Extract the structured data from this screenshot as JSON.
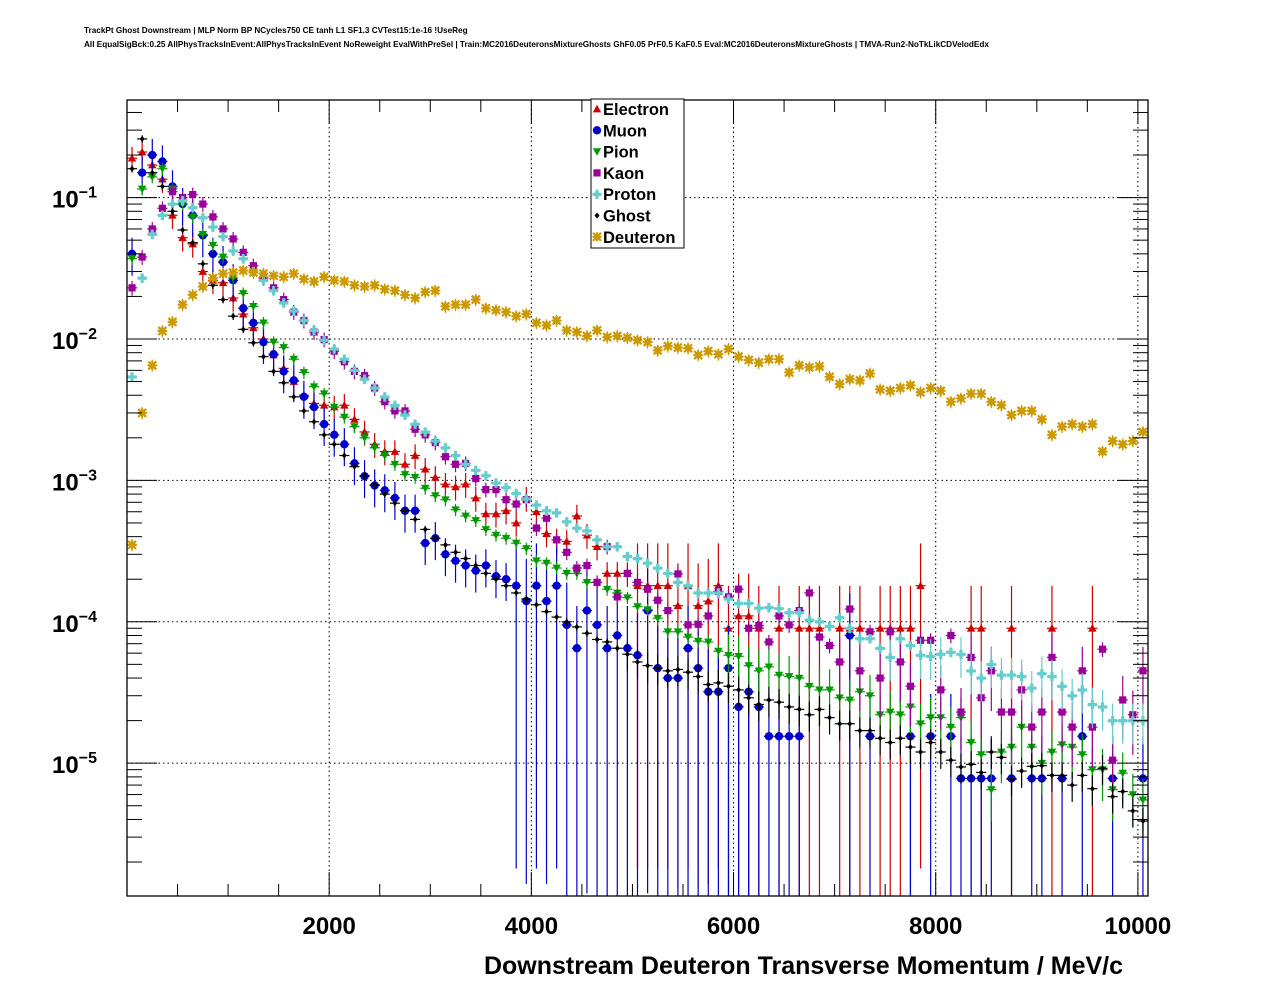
{
  "title": {
    "line1": "TrackPt Ghost Downstream | MLP Norm BP NCycles750 CE tanh L1 SF1.3 CVTest15:1e-16 !UseReg",
    "line2": "All EqualSigBck:0.25 AllPhysTracksInEvent:AllPhysTracksInEvent NoReweight EvalWithPreSel | Train:MC2016DeuteronsMixtureGhosts GhF0.05 PrF0.5 KaF0.5 Eval:MC2016DeuteronsMixtureGhosts | TMVA-Run2-NoTkLikCDVelodEdx"
  },
  "chart_data": {
    "type": "scatter",
    "title": "TrackPt Ghost Downstream",
    "xlabel": "Downstream Deuteron Transverse Momentum / MeV/c",
    "ylabel": "",
    "xlim": [
      0,
      10100
    ],
    "ylim": [
      1.15e-06,
      0.49
    ],
    "yscale": "log",
    "grid": true,
    "legend_position": "top-center",
    "bin_width": 100,
    "x_ticks": [
      2000,
      4000,
      6000,
      8000,
      10000
    ],
    "x_tick_labels": [
      "2000",
      "4000",
      "6000",
      "8000",
      "10000"
    ],
    "y_ticks": [
      0.1,
      0.01,
      0.001,
      0.0001,
      1e-05
    ],
    "y_tick_labels": [
      {
        "base": "10",
        "exp": "−1"
      },
      {
        "base": "10",
        "exp": "−2"
      },
      {
        "base": "10",
        "exp": "−3"
      },
      {
        "base": "10",
        "exp": "−4"
      },
      {
        "base": "10",
        "exp": "−5"
      }
    ],
    "series": [
      {
        "name": "Electron",
        "color": "#cc0000",
        "marker": "triangle-up",
        "first_bin_center": 50,
        "values": [
          0.19,
          0.21,
          0.17,
          0.135,
          0.075,
          0.052,
          0.047,
          0.03,
          0.026,
          0.025,
          0.0195,
          0.015,
          0.012,
          0.01,
          0.0077,
          0.0062,
          0.005,
          0.004,
          0.0035,
          0.0034,
          0.0033,
          0.0034,
          0.0027,
          0.0022,
          0.0018,
          0.0016,
          0.0016,
          0.0013,
          0.0015,
          0.0012,
          0.00105,
          0.00094,
          0.0009,
          0.00094,
          0.00075,
          0.00058,
          0.00058,
          0.00061,
          0.0005,
          0.00075,
          0.0006,
          0.00042,
          0.00038,
          0.00037,
          0.00056,
          0.00041,
          0.00034,
          0.00022,
          0.00022,
          0.00022,
          0.00018,
          0.00018,
          0.00018,
          0.00018,
          0.00013,
          0.00018,
          0.00013,
          0.00014,
          0.00018,
          9e-05,
          0.00011,
          0.00011,
          9e-05,
          null,
          9e-05,
          null,
          9e-05,
          9e-05,
          9e-05,
          null,
          9e-05,
          9e-05,
          9e-05,
          null,
          9e-05,
          9e-05,
          9e-05,
          9e-05,
          0.00018,
          null,
          null,
          null,
          null,
          9e-05,
          9e-05,
          null,
          null,
          9e-05,
          null,
          null,
          null,
          9e-05,
          null,
          null,
          null,
          9e-05,
          null,
          null,
          null,
          null,
          null
        ],
        "rel_err": 0.2
      },
      {
        "name": "Muon",
        "color": "#0000cc",
        "marker": "circle",
        "first_bin_center": 50,
        "values": [
          0.04,
          0.15,
          0.2,
          0.18,
          0.12,
          0.09,
          0.075,
          0.054,
          0.04,
          0.035,
          0.026,
          0.0165,
          0.013,
          0.0095,
          0.0078,
          0.0059,
          0.0051,
          0.0039,
          0.0033,
          0.0025,
          0.0021,
          0.0018,
          0.00132,
          0.00107,
          0.00092,
          0.00085,
          0.00075,
          0.00061,
          0.00061,
          0.00036,
          0.00039,
          0.0003,
          0.00027,
          0.00025,
          0.00023,
          0.00025,
          0.00021,
          0.0002,
          0.00018,
          0.00014,
          0.00018,
          0.00014,
          0.00018,
          9.5e-05,
          6.5e-05,
          0.00012,
          9.5e-05,
          6.5e-05,
          8e-05,
          6.5e-05,
          5.8e-05,
          0.00012,
          4.7e-05,
          4e-05,
          4e-05,
          6.5e-05,
          4.7e-05,
          3.2e-05,
          3.2e-05,
          4.7e-05,
          2.5e-05,
          3.2e-05,
          2.5e-05,
          1.55e-05,
          1.55e-05,
          1.55e-05,
          1.55e-05,
          null,
          null,
          null,
          null,
          8e-05,
          null,
          1.55e-05,
          null,
          null,
          null,
          1.55e-05,
          null,
          1.55e-05,
          null,
          1.55e-05,
          7.8e-06,
          7.8e-06,
          7.8e-06,
          7.8e-06,
          null,
          7.8e-06,
          null,
          7.8e-06,
          7.8e-06,
          null,
          7.8e-06,
          null,
          1.55e-05,
          null,
          null,
          7.8e-06,
          null,
          null,
          7.8e-06
        ],
        "rel_err": 0.3
      },
      {
        "name": "Pion",
        "color": "#009900",
        "marker": "triangle-down",
        "first_bin_center": 50,
        "values": [
          0.037,
          0.115,
          0.14,
          0.16,
          0.115,
          0.09,
          0.073,
          0.055,
          0.046,
          0.038,
          0.027,
          0.021,
          0.017,
          0.013,
          0.0095,
          0.0087,
          0.0072,
          0.0058,
          0.0046,
          0.0041,
          0.0033,
          0.0028,
          0.0024,
          0.002,
          0.0017,
          0.0015,
          0.0013,
          0.0011,
          0.00105,
          0.00088,
          0.00078,
          0.00073,
          0.00062,
          0.00056,
          0.00052,
          0.00045,
          0.00041,
          0.00039,
          0.00036,
          0.00033,
          0.00027,
          0.00026,
          0.00024,
          0.00022,
          0.00022,
          0.00019,
          0.00019,
          0.00017,
          0.00016,
          0.000148,
          0.000128,
          0.000122,
          0.000106,
          8.5e-05,
          8.5e-05,
          7.8e-05,
          7.3e-05,
          7.2e-05,
          6.2e-05,
          5.8e-05,
          5.7e-05,
          4.9e-05,
          4.5e-05,
          4.8e-05,
          4.2e-05,
          4.1e-05,
          4e-05,
          3.5e-05,
          3.3e-05,
          3.3e-05,
          2.9e-05,
          2.8e-05,
          3.2e-05,
          3e-05,
          2.2e-05,
          2.3e-05,
          2.2e-05,
          2.5e-05,
          1.9e-05,
          2.1e-05,
          2.1e-05,
          1.8e-05,
          2.1e-05,
          1.4e-05,
          1.15e-05,
          6.5e-06,
          1.2e-05,
          1.3e-05,
          1.8e-05,
          1.3e-05,
          1e-05,
          1.2e-05,
          1.35e-05,
          1.3e-05,
          1.15e-05,
          9e-06,
          9e-06,
          6.5e-06,
          8.5e-06,
          6e-06,
          5.5e-06
        ],
        "rel_err": 0.1
      },
      {
        "name": "Kaon",
        "color": "#990099",
        "marker": "square",
        "first_bin_center": 50,
        "values": [
          0.023,
          0.038,
          0.06,
          0.084,
          0.11,
          0.1,
          0.105,
          0.09,
          0.073,
          0.06,
          0.051,
          0.041,
          0.033,
          0.027,
          0.023,
          0.019,
          0.0155,
          0.0135,
          0.0112,
          0.0099,
          0.0082,
          0.0069,
          0.0059,
          0.0055,
          0.0045,
          0.0036,
          0.0031,
          0.0031,
          0.0023,
          0.0021,
          0.00185,
          0.00147,
          0.0013,
          0.00132,
          0.00103,
          0.00086,
          0.00086,
          0.00073,
          0.00068,
          0.00073,
          0.00046,
          0.00054,
          0.00038,
          0.00031,
          0.00024,
          0.00025,
          0.00019,
          0.00034,
          0.00015,
          0.00022,
          0.00019,
          0.00017,
          0.000142,
          0.00012,
          0.000218,
          9.5e-05,
          9.6e-05,
          0.00011,
          0.000164,
          0.00015,
          0.00017,
          9e-05,
          9.4e-05,
          7.2e-05,
          0.00011,
          9.5e-05,
          0.00012,
          0.00016,
          7.8e-05,
          6.8e-05,
          5.2e-05,
          0.000123,
          4.5e-05,
          8.5e-05,
          4e-05,
          8.5e-05,
          5.2e-05,
          3.5e-05,
          7.4e-05,
          7.4e-05,
          3.3e-05,
          8e-05,
          2.3e-05,
          5.6e-05,
          2.9e-05,
          4.5e-05,
          2.3e-05,
          2.3e-05,
          3.3e-05,
          1.8e-05,
          2.3e-05,
          5.6e-05,
          2.3e-05,
          1.8e-05,
          4.5e-05,
          1.8e-05,
          6.4e-05,
          1.05e-05,
          2.8e-05,
          2.2e-05,
          4.5e-05
        ],
        "rel_err": 0.12
      },
      {
        "name": "Proton",
        "color": "#66cccc",
        "marker": "cross",
        "first_bin_center": 50,
        "values": [
          0.0054,
          0.027,
          0.055,
          0.075,
          0.09,
          0.095,
          0.085,
          0.072,
          0.062,
          0.053,
          0.042,
          0.037,
          0.03,
          0.026,
          0.022,
          0.018,
          0.0158,
          0.0135,
          0.0115,
          0.0098,
          0.0085,
          0.0072,
          0.006,
          0.0052,
          0.0045,
          0.0039,
          0.0034,
          0.0029,
          0.0025,
          0.0022,
          0.0019,
          0.0017,
          0.0015,
          0.0013,
          0.00118,
          0.00108,
          0.00096,
          0.00089,
          0.00081,
          0.00074,
          0.00067,
          0.00061,
          0.00059,
          0.00051,
          0.00046,
          0.00044,
          0.00038,
          0.00034,
          0.00034,
          0.00029,
          0.00028,
          0.00026,
          0.00024,
          0.00022,
          0.00019,
          0.00018,
          0.00016,
          0.00016,
          0.00016,
          0.000145,
          0.000135,
          0.000135,
          0.000125,
          0.000126,
          0.000124,
          0.000116,
          0.000116,
          0.000103,
          0.0001,
          9.3e-05,
          0.000107,
          9e-05,
          7.6e-05,
          7.6e-05,
          6.5e-05,
          5.6e-05,
          7.6e-05,
          6.8e-05,
          5.8e-05,
          5.7e-05,
          5.9e-05,
          6.1e-05,
          5.9e-05,
          4.5e-05,
          4e-05,
          5e-05,
          4.2e-05,
          4.2e-05,
          4.1e-05,
          3.4e-05,
          4.3e-05,
          4.1e-05,
          3.5e-05,
          3e-05,
          3.3e-05,
          2.6e-05,
          2.5e-05,
          2e-05,
          2e-05,
          2e-05,
          2e-05
        ],
        "rel_err": 0.08
      },
      {
        "name": "Ghost",
        "color": "#000000",
        "marker": "diamond",
        "first_bin_center": 50,
        "values": [
          0.16,
          0.26,
          0.15,
          0.12,
          0.08,
          0.059,
          0.048,
          0.034,
          0.024,
          0.019,
          0.0145,
          0.0117,
          0.0094,
          0.0075,
          0.0059,
          0.0049,
          0.0039,
          0.0031,
          0.0026,
          0.0021,
          0.0018,
          0.0015,
          0.00125,
          0.00108,
          0.00093,
          0.0008,
          0.00069,
          0.00061,
          0.00053,
          0.00045,
          0.00039,
          0.00035,
          0.00031,
          0.00028,
          0.00025,
          0.00022,
          0.0002,
          0.00018,
          0.00016,
          0.000145,
          0.000132,
          0.000118,
          0.000108,
          0.0001,
          9.2e-05,
          8.3e-05,
          7.5e-05,
          7.2e-05,
          6.5e-05,
          5.9e-05,
          5.2e-05,
          4.9e-05,
          4.7e-05,
          4.5e-05,
          4.6e-05,
          4.4e-05,
          4.1e-05,
          3.6e-05,
          3.7e-05,
          3.5e-05,
          3.3e-05,
          2.9e-05,
          2.6e-05,
          2.8e-05,
          2.7e-05,
          2.5e-05,
          2.4e-05,
          2.2e-05,
          2.4e-05,
          2.1e-05,
          1.9e-05,
          1.9e-05,
          1.7e-05,
          1.7e-05,
          1.5e-05,
          1.4e-05,
          1.5e-05,
          1.3e-05,
          1.2e-05,
          1.4e-05,
          1.2e-05,
          1.05e-05,
          9.4e-06,
          9.8e-06,
          8.6e-06,
          1.2e-05,
          1.1e-05,
          7.7e-06,
          8.8e-06,
          9.5e-06,
          9.6e-06,
          8.2e-06,
          8.2e-06,
          7e-06,
          8.2e-06,
          6.6e-06,
          9.2e-06,
          5.8e-06,
          6.3e-06,
          4.6e-06,
          3.9e-06
        ],
        "rel_err": 0.06
      },
      {
        "name": "Deuteron",
        "color": "#cc9900",
        "marker": "star",
        "first_bin_center": 50,
        "values": [
          0.00035,
          0.003,
          0.0065,
          0.0114,
          0.0132,
          0.0175,
          0.0205,
          0.0235,
          0.027,
          0.029,
          0.0295,
          0.0305,
          0.0295,
          0.029,
          0.028,
          0.0275,
          0.029,
          0.0265,
          0.0255,
          0.0275,
          0.026,
          0.0255,
          0.024,
          0.0235,
          0.024,
          0.0225,
          0.022,
          0.0205,
          0.0195,
          0.0215,
          0.022,
          0.017,
          0.0175,
          0.0175,
          0.019,
          0.0165,
          0.016,
          0.0155,
          0.0145,
          0.015,
          0.013,
          0.0125,
          0.0135,
          0.0115,
          0.0112,
          0.0105,
          0.0115,
          0.0103,
          0.0105,
          0.0102,
          0.0098,
          0.0095,
          0.0083,
          0.0089,
          0.0087,
          0.0086,
          0.0077,
          0.0082,
          0.0078,
          0.0085,
          0.0075,
          0.0071,
          0.0068,
          0.0072,
          0.0072,
          0.0058,
          0.0065,
          0.0063,
          0.0064,
          0.0054,
          0.0048,
          0.0052,
          0.0051,
          0.0057,
          0.0044,
          0.0043,
          0.0045,
          0.0047,
          0.0042,
          0.0045,
          0.0043,
          0.0036,
          0.0038,
          0.0041,
          0.0041,
          0.0036,
          0.0034,
          0.0029,
          0.0031,
          0.0031,
          0.0027,
          0.0021,
          0.0024,
          0.0025,
          0.0024,
          0.0025,
          0.0016,
          0.0019,
          0.0018,
          0.0019,
          0.0022
        ],
        "rel_err": 0.1
      }
    ]
  }
}
